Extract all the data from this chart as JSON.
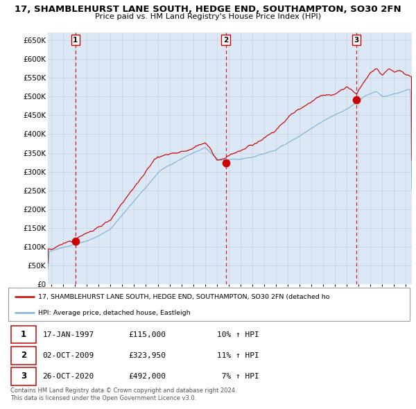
{
  "title": "17, SHAMBLEHURST LANE SOUTH, HEDGE END, SOUTHAMPTON, SO30 2FN",
  "subtitle": "Price paid vs. HM Land Registry's House Price Index (HPI)",
  "ytick_values": [
    0,
    50000,
    100000,
    150000,
    200000,
    250000,
    300000,
    350000,
    400000,
    450000,
    500000,
    550000,
    600000,
    650000
  ],
  "xlim_start": 1994.7,
  "xlim_end": 2025.5,
  "ylim_min": 0,
  "ylim_max": 670000,
  "sales": [
    {
      "date": 1997.04,
      "price": 115000,
      "label": "1"
    },
    {
      "date": 2009.75,
      "price": 323950,
      "label": "2"
    },
    {
      "date": 2020.82,
      "price": 492000,
      "label": "3"
    }
  ],
  "vlines": [
    1997.04,
    2009.75,
    2020.82
  ],
  "sale_color": "#cc0000",
  "hpi_color": "#7ab0d4",
  "background_color": "#dce8f5",
  "legend_label_red": "17, SHAMBLEHURST LANE SOUTH, HEDGE END, SOUTHAMPTON, SO30 2FN (detached ho",
  "legend_label_blue": "HPI: Average price, detached house, Eastleigh",
  "table_rows": [
    [
      "1",
      "17-JAN-1997",
      "£115,000",
      "10% ↑ HPI"
    ],
    [
      "2",
      "02-OCT-2009",
      "£323,950",
      "11% ↑ HPI"
    ],
    [
      "3",
      "26-OCT-2020",
      "£492,000",
      " 7% ↑ HPI"
    ]
  ],
  "footnote": "Contains HM Land Registry data © Crown copyright and database right 2024.\nThis data is licensed under the Open Government Licence v3.0.",
  "xticks": [
    1995,
    1996,
    1997,
    1998,
    1999,
    2000,
    2001,
    2002,
    2003,
    2004,
    2005,
    2006,
    2007,
    2008,
    2009,
    2010,
    2011,
    2012,
    2013,
    2014,
    2015,
    2016,
    2017,
    2018,
    2019,
    2020,
    2021,
    2022,
    2023,
    2024,
    2025
  ]
}
